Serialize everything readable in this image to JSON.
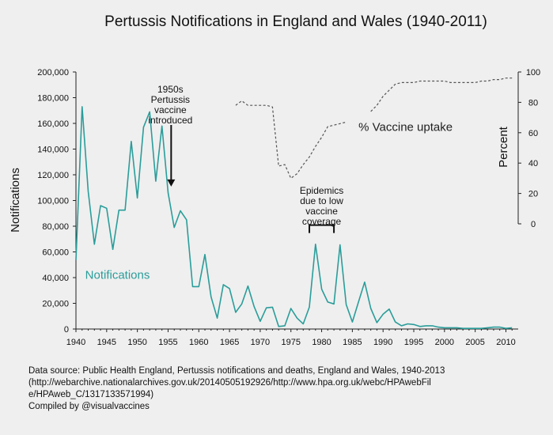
{
  "chart_data": {
    "type": "line",
    "title": "Pertussis Notifications in England and Wales (1940-2011)",
    "ylabel": "Notifications",
    "y2label": "Percent",
    "xlim": [
      1940,
      2012
    ],
    "ylim": [
      0,
      200000
    ],
    "y2lim": [
      0,
      100
    ],
    "x_ticks": [
      1940,
      1945,
      1950,
      1955,
      1960,
      1965,
      1970,
      1975,
      1980,
      1985,
      1990,
      1995,
      2000,
      2005,
      2010
    ],
    "y_ticks": [
      0,
      20000,
      40000,
      60000,
      80000,
      100000,
      120000,
      140000,
      160000,
      180000,
      200000
    ],
    "y_tick_labels": [
      "0",
      "20,000",
      "40,000",
      "60,000",
      "80,000",
      "100,000",
      "120,000",
      "140,000",
      "160,000",
      "180,000",
      "200,000"
    ],
    "y2_ticks": [
      0,
      20,
      40,
      60,
      80,
      100
    ],
    "grid": false,
    "series": [
      {
        "name": "Notifications",
        "color": "#2a9d9a",
        "style": "solid",
        "x": [
          1940,
          1941,
          1942,
          1943,
          1944,
          1945,
          1946,
          1947,
          1948,
          1949,
          1950,
          1951,
          1952,
          1953,
          1954,
          1955,
          1956,
          1957,
          1958,
          1959,
          1960,
          1961,
          1962,
          1963,
          1964,
          1965,
          1966,
          1967,
          1968,
          1969,
          1970,
          1971,
          1972,
          1973,
          1974,
          1975,
          1976,
          1977,
          1978,
          1979,
          1980,
          1981,
          1982,
          1983,
          1984,
          1985,
          1986,
          1987,
          1988,
          1989,
          1990,
          1991,
          1992,
          1993,
          1994,
          1995,
          1996,
          1997,
          1998,
          1999,
          2000,
          2001,
          2002,
          2003,
          2004,
          2005,
          2006,
          2007,
          2008,
          2009,
          2010,
          2011
        ],
        "values": [
          53600,
          173000,
          107000,
          66000,
          96000,
          94000,
          62000,
          92500,
          92500,
          146000,
          102000,
          157000,
          169000,
          115000,
          158000,
          106000,
          79000,
          92000,
          85000,
          33000,
          33000,
          58000,
          25000,
          8500,
          34500,
          31500,
          13000,
          19500,
          33500,
          17500,
          6000,
          16500,
          17000,
          2000,
          2500,
          16000,
          8500,
          4000,
          17000,
          66000,
          31000,
          21000,
          19500,
          65500,
          19000,
          5500,
          21000,
          36500,
          16000,
          5000,
          11500,
          15500,
          5500,
          2500,
          4000,
          3500,
          2000,
          2500,
          2500,
          1500,
          1000,
          1000,
          1000,
          500,
          500,
          500,
          500,
          1000,
          1500,
          1500,
          500,
          1000
        ]
      },
      {
        "name": "% Vaccine uptake",
        "color": "#555555",
        "style": "dashed",
        "axis": "right",
        "x": [
          1966,
          1967,
          1968,
          1969,
          1970,
          1971,
          1972,
          1973,
          1974,
          1975,
          1976,
          1977,
          1978,
          1979,
          1980,
          1981,
          1982,
          1983,
          1984,
          1985,
          1986,
          1987,
          1988,
          1989,
          1990,
          1991,
          1992,
          1993,
          1994,
          1995,
          1996,
          1997,
          1998,
          1999,
          2000,
          2001,
          2002,
          2003,
          2004,
          2005,
          2006,
          2007,
          2008,
          2009,
          2010,
          2011
        ],
        "values": [
          78,
          81,
          78,
          78,
          78,
          78,
          77,
          38,
          39,
          30,
          33,
          39,
          44,
          51,
          57,
          64,
          65,
          66,
          67,
          null,
          null,
          null,
          74,
          78,
          84,
          88,
          92,
          93,
          93,
          93,
          94,
          94,
          94,
          94,
          94,
          93,
          93,
          93,
          93,
          93,
          94,
          94,
          95,
          95,
          96,
          96
        ]
      }
    ],
    "annotations": [
      {
        "lines": [
          "1950s",
          "Pertussis",
          "vaccine",
          "introduced"
        ],
        "target_x": 1955.5,
        "target_y": 117000
      },
      {
        "lines": [
          "Epidemics",
          "due to low",
          "vaccine",
          "coverage"
        ],
        "bracket_x": [
          1978,
          1982
        ],
        "bracket_y": 79000
      },
      {
        "text": "% Vaccine uptake",
        "x": 1986,
        "y": 158000,
        "color": "#222222"
      },
      {
        "text": "Notifications",
        "x": 1941.5,
        "y": 46000,
        "color": "#2a9d9a"
      }
    ]
  },
  "caption": {
    "line1": "Data source: Public Health England, Pertussis notifications and deaths, England and Wales, 1940-2013",
    "line2": "(http://webarchive.nationalarchives.gov.uk/20140505192926/http://www.hpa.org.uk/webc/HPAwebFil",
    "line3": "e/HPAweb_C/1317133571994)",
    "line4": "Compiled by @visualvaccines"
  }
}
